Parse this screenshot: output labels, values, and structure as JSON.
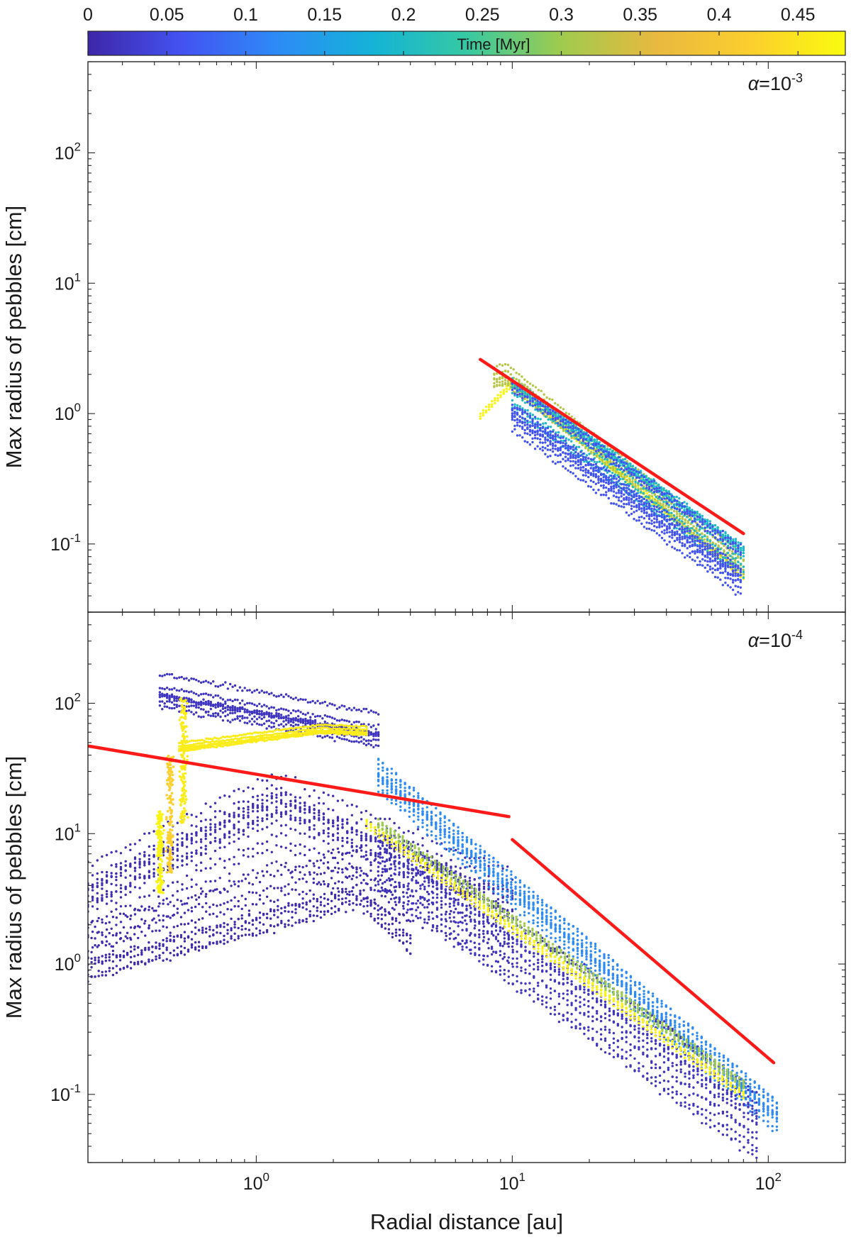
{
  "colors": {
    "fit_line": "#ff1a1a",
    "colormap": [
      "#3e26a8",
      "#4353f2",
      "#2d8bf6",
      "#14b3d7",
      "#36c9a3",
      "#9fcb4d",
      "#e8b93f",
      "#fcce2e",
      "#f9fb0e"
    ],
    "early_points": "#5a3fe0"
  },
  "colorbar": {
    "title": "Time [Myr]",
    "range": [
      0,
      0.48
    ],
    "tick_values": [
      0,
      0.05,
      0.1,
      0.15,
      0.2,
      0.25,
      0.3,
      0.35,
      0.4,
      0.45
    ],
    "tick_labels": [
      "0",
      "0.05",
      "0.1",
      "0.15",
      "0.2",
      "0.25",
      "0.3",
      "0.35",
      "0.4",
      "0.45"
    ]
  },
  "chart_data": [
    {
      "type": "scatter",
      "panel": "top",
      "annotation": {
        "symbol": "α",
        "base": "=10",
        "exponent": "-3"
      },
      "xlabel": "",
      "ylabel": "Max radius of pebbles [cm]",
      "xscale": "log",
      "yscale": "log",
      "xlim": [
        0.22,
        200
      ],
      "ylim": [
        0.03,
        500
      ],
      "y_ticks": [
        {
          "value": 0.1,
          "base": "10",
          "exp": "-1"
        },
        {
          "value": 1,
          "base": "10",
          "exp": "0"
        },
        {
          "value": 10,
          "base": "10",
          "exp": "1"
        },
        {
          "value": 100,
          "base": "10",
          "exp": "2"
        }
      ],
      "x_ticks": [
        1,
        10,
        100
      ],
      "fit_lines": [
        {
          "x": [
            7.5,
            80
          ],
          "y": [
            2.6,
            0.12
          ]
        }
      ],
      "point_bands": [
        {
          "x_start": 7.5,
          "x_end": 80,
          "time": 0.47,
          "y_start": 0.95,
          "y_end": 0.055,
          "peak_x": 10,
          "peak_y": 1.7,
          "spread": 0.04,
          "lines": 3
        },
        {
          "x_start": 8.5,
          "x_end": 80,
          "time": 0.32,
          "y_start": 1.9,
          "y_end": 0.07,
          "peak_x": 9.5,
          "peak_y": 2.0,
          "spread": 0.06,
          "lines": 8
        },
        {
          "x_start": 10,
          "x_end": 80,
          "time": 0.2,
          "y_start": 1.5,
          "y_end": 0.08,
          "spread": 0.1,
          "lines": 10
        },
        {
          "x_start": 10,
          "x_end": 78,
          "time": 0.06,
          "y_start": 1.2,
          "y_end": 0.065,
          "spread": 0.14,
          "lines": 12
        }
      ]
    },
    {
      "type": "scatter",
      "panel": "bottom",
      "annotation": {
        "symbol": "α",
        "base": "=10",
        "exponent": "-4"
      },
      "xlabel": "Radial distance [au]",
      "ylabel": "Max radius of pebbles [cm]",
      "xscale": "log",
      "yscale": "log",
      "xlim": [
        0.22,
        200
      ],
      "ylim": [
        0.03,
        500
      ],
      "y_ticks": [
        {
          "value": 0.1,
          "base": "10",
          "exp": "-1"
        },
        {
          "value": 1,
          "base": "10",
          "exp": "0"
        },
        {
          "value": 10,
          "base": "10",
          "exp": "1"
        },
        {
          "value": 100,
          "base": "10",
          "exp": "2"
        }
      ],
      "x_ticks": [
        {
          "value": 1,
          "base": "10",
          "exp": "0"
        },
        {
          "value": 10,
          "base": "10",
          "exp": "1"
        },
        {
          "value": 100,
          "base": "10",
          "exp": "2"
        }
      ],
      "fit_lines": [
        {
          "x": [
            0.22,
            9.7
          ],
          "y": [
            47,
            13.5
          ]
        },
        {
          "x": [
            10,
            105
          ],
          "y": [
            9,
            0.175
          ]
        }
      ],
      "point_bands": [
        {
          "x_start": 0.22,
          "x_end": 10,
          "time": 0.01,
          "y_start": 3,
          "y_end": 2.5,
          "peak_x": 1.2,
          "peak_y": 15,
          "spread": 0.25,
          "lines": 14
        },
        {
          "x_start": 0.22,
          "x_end": 4,
          "time": 0.005,
          "y_start": 0.8,
          "y_end": 1.3,
          "peak_x": 2.5,
          "peak_y": 3,
          "spread": 0.22,
          "lines": 8
        },
        {
          "x_start": 0.42,
          "x_end": 3,
          "time": 0.02,
          "y_start": 120,
          "y_end": 60,
          "spread": 0.12,
          "lines": 8
        },
        {
          "x_start": 3,
          "x_end": 108,
          "time": 0.12,
          "y_start": 25,
          "y_end": 0.06,
          "spread": 0.12,
          "lines": 14
        },
        {
          "x_start": 3,
          "x_end": 90,
          "time": 0.02,
          "y_start": 8,
          "y_end": 0.07,
          "spread": 0.2,
          "lines": 14
        },
        {
          "x_start": 3,
          "x_end": 80,
          "time": 0.3,
          "y_start": 12,
          "y_end": 0.12,
          "spread": 0.06,
          "lines": 6
        },
        {
          "x_start": 0.5,
          "x_end": 2.7,
          "time": 0.46,
          "y_start": 45,
          "y_end": 60,
          "peak_x": 1.8,
          "peak_y": 62,
          "spread": 0.04,
          "lines": 6
        },
        {
          "x_start": 2.7,
          "x_end": 80,
          "time": 0.47,
          "y_start": 12,
          "y_end": 0.1,
          "spread": 0.04,
          "lines": 5
        }
      ],
      "vertical_bands": [
        {
          "x": 0.42,
          "time": 0.47,
          "y_min": 3.5,
          "y_max": 15
        },
        {
          "x": 0.46,
          "time": 0.42,
          "y_min": 5,
          "y_max": 40
        },
        {
          "x": 0.52,
          "time": 0.46,
          "y_min": 12,
          "y_max": 110
        }
      ]
    }
  ]
}
